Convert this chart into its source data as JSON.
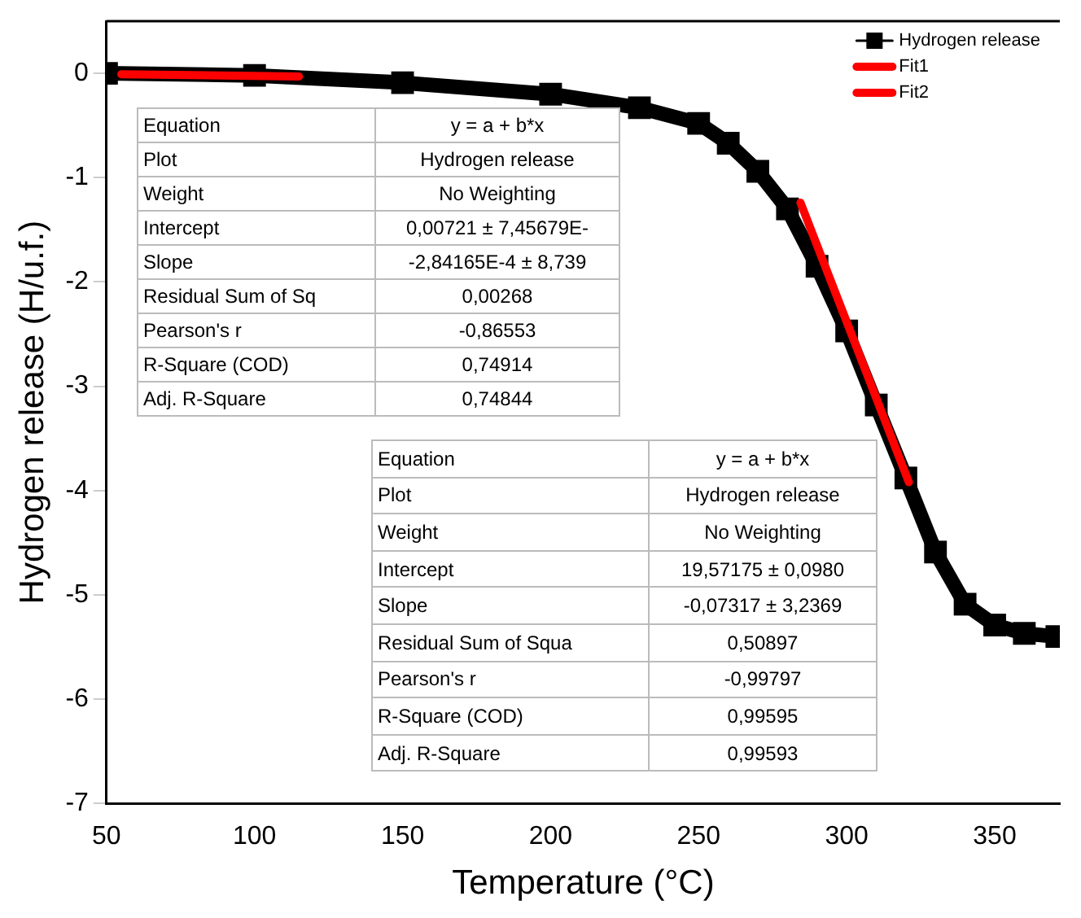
{
  "chart_data": {
    "type": "line",
    "xlabel": "Temperature (°C)",
    "ylabel": "Hydrogen release (H/u.f.)",
    "xlim": [
      50,
      372
    ],
    "xticks": [
      50,
      100,
      150,
      200,
      250,
      300,
      350
    ],
    "ylim": [
      -7,
      0.5
    ],
    "yticks": [
      0,
      -1,
      -2,
      -3,
      -4,
      -5,
      -6,
      -7
    ],
    "grid": false,
    "legend": "top right",
    "line_style": "solid",
    "series": [
      {
        "name": "Hydrogen release",
        "color": "#000000",
        "marker": "square",
        "x": [
          50,
          100,
          150,
          200,
          230,
          250,
          260,
          270,
          280,
          290,
          300,
          310,
          320,
          330,
          340,
          350,
          360,
          371
        ],
        "values": [
          0,
          -0.02,
          -0.09,
          -0.2,
          -0.33,
          -0.48,
          -0.67,
          -0.94,
          -1.3,
          -1.85,
          -2.47,
          -3.18,
          -3.88,
          -4.59,
          -5.09,
          -5.29,
          -5.37,
          -5.4
        ]
      },
      {
        "name": "Fit1",
        "color": "#ff0000",
        "marker": "none",
        "x": [
          55,
          115
        ],
        "values": [
          -0.01,
          -0.03
        ]
      },
      {
        "name": "Fit2",
        "color": "#ff0000",
        "marker": "none",
        "x": [
          284.4,
          321
        ],
        "values": [
          -1.24,
          -3.92
        ]
      }
    ],
    "annotations": [
      "Equation",
      "y = a + b*x",
      "Plot",
      "Hydrogen release",
      "Weight",
      "No Weighting",
      "Intercept",
      "0,00721 ± 7,45679E-",
      "Slope",
      "-2,84165E-4 ± 8,739",
      "Residual Sum of Sq",
      "0,00268",
      "Pearson's r",
      "-0,86553",
      "R-Square (COD)",
      "0,74914",
      "Adj. R-Square",
      "0,74844",
      "Equation",
      "y = a + b*x",
      "Plot",
      "Hydrogen release",
      "Weight",
      "No Weighting",
      "Intercept",
      "19,57175 ± 0,0980",
      "Slope",
      "-0,07317 ± 3,2369",
      "Residual Sum of Squa",
      "0,50897",
      "Pearson's r",
      "-0,99797",
      "R-Square (COD)",
      "0,99595",
      "Adj. R-Square",
      "0,99593"
    ]
  }
}
